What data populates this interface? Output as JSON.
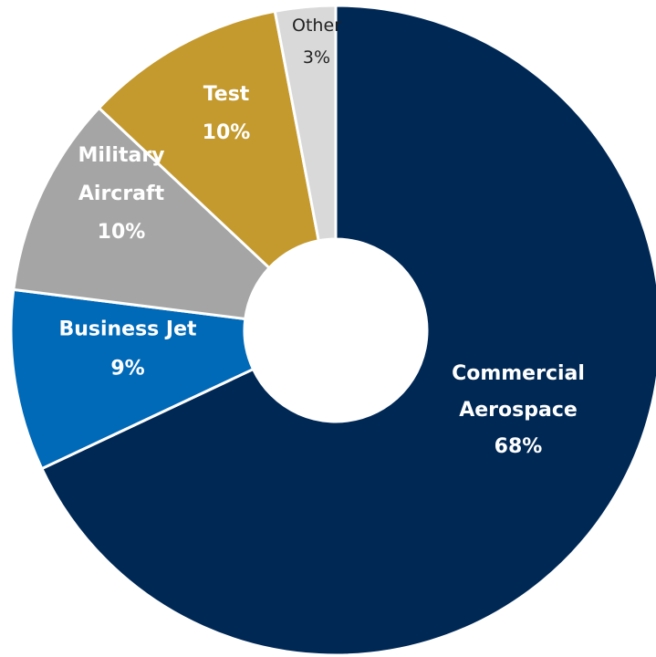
{
  "chart_data": {
    "type": "pie",
    "donut": true,
    "title": "",
    "slices": [
      {
        "label": "Commercial Aerospace",
        "label_lines": [
          "Commercial",
          "Aerospace"
        ],
        "value": 68,
        "value_label": "68%",
        "color": "#002855"
      },
      {
        "label": "Business Jet",
        "label_lines": [
          "Business Jet"
        ],
        "value": 9,
        "value_label": "9%",
        "color": "#0069B8"
      },
      {
        "label": "Military Aircraft",
        "label_lines": [
          "Military",
          "Aircraft"
        ],
        "value": 10,
        "value_label": "10%",
        "color": "#A5A5A5"
      },
      {
        "label": "Test",
        "label_lines": [
          "Test"
        ],
        "value": 10,
        "value_label": "10%",
        "color": "#C49A2E"
      },
      {
        "label": "Other",
        "label_lines": [
          "Other"
        ],
        "value": 3,
        "value_label": "3%",
        "color": "#D9D9D9"
      }
    ],
    "start": "12 o'clock",
    "direction": "clockwise",
    "legend": "none"
  }
}
